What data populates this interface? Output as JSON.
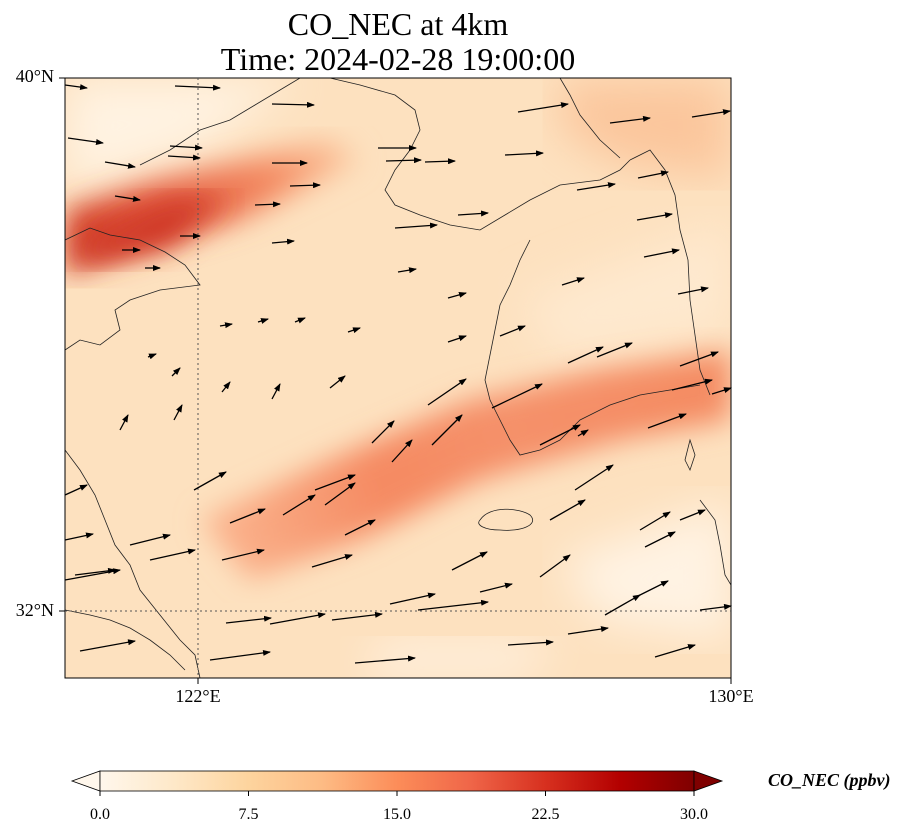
{
  "title": {
    "line1": "CO_NEC at 4km",
    "line2": "Time: 2024-02-28 19:00:00"
  },
  "map": {
    "lat_labels": [
      "40°N",
      "32°N"
    ],
    "lon_labels": [
      "122°E",
      "130°E"
    ],
    "extent": {
      "lon_min": 120,
      "lon_max": 130,
      "lat_min": 31,
      "lat_max": 40
    },
    "gridlines": {
      "lons": [
        122
      ],
      "lats": [
        32
      ],
      "style": "dotted"
    }
  },
  "colorbar": {
    "label": "CO_NEC (ppbv)",
    "ticks": [
      "0.0",
      "7.5",
      "15.0",
      "22.5",
      "30.0"
    ],
    "range": [
      0,
      30
    ],
    "colormap": "OrRd",
    "colors": [
      "#fff7ec",
      "#fee8c8",
      "#fdd49e",
      "#fdbb84",
      "#fc8d59",
      "#ef6548",
      "#d7301f",
      "#b30000",
      "#7f0000"
    ]
  },
  "chart_data": {
    "type": "heatmap",
    "title": "CO_NEC at 4km\nTime: 2024-02-28 19:00:00",
    "xlabel": "",
    "ylabel": "",
    "xlim": [
      120,
      130
    ],
    "ylim": [
      31,
      40
    ],
    "bands": [
      {
        "desc": "northern plume",
        "lon_start": 120,
        "lat_start": 37.9,
        "lon_end": 124.5,
        "lat_end": 39.2,
        "peak_ppbv": 22
      },
      {
        "desc": "central plume",
        "lon_start": 122.5,
        "lat_start": 33.5,
        "lon_end": 130,
        "lat_end": 35.7,
        "peak_ppbv": 16
      },
      {
        "desc": "northeast band",
        "lon_start": 127,
        "lat_start": 38.5,
        "lon_end": 130,
        "lat_end": 39.7,
        "peak_ppbv": 11
      }
    ],
    "background_ppbv": 6
  }
}
